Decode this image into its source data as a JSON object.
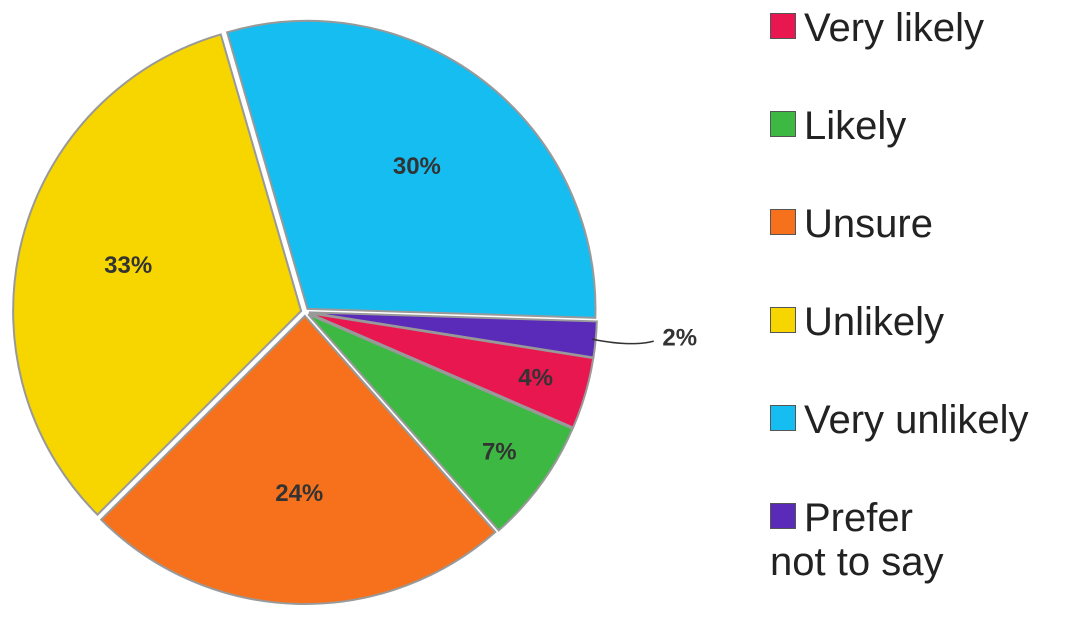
{
  "chart_data": {
    "type": "pie",
    "categories": [
      "Very likely",
      "Likely",
      "Unsure",
      "Unlikely",
      "Very unlikely",
      "Prefer not to say"
    ],
    "values": [
      4,
      7,
      24,
      33,
      30,
      2
    ],
    "value_labels": [
      "4%",
      "7%",
      "24%",
      "33%",
      "30%",
      "2%"
    ],
    "colors": [
      "#e8174f",
      "#3cb843",
      "#f7711c",
      "#f7d600",
      "#15bdf0",
      "#5a2bb8"
    ],
    "legend": "right"
  }
}
